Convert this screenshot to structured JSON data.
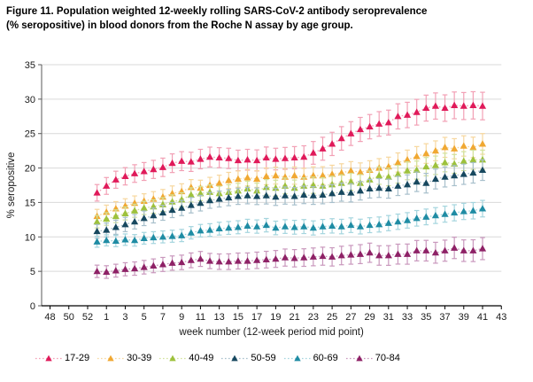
{
  "figure": {
    "title_line1": "Figure 11. Population weighted 12-weekly rolling SARS-CoV-2 antibody seroprevalence",
    "title_line2": "(% seropositive) in blood donors from the Roche N assay by age group."
  },
  "chart_data": {
    "type": "scatter",
    "title": "Figure 11. Population weighted 12-weekly rolling SARS-CoV-2 antibody seroprevalence (% seropositive) in blood donors from the Roche N assay by age group.",
    "xlabel": "week number (12-week period mid point)",
    "ylabel": "% seropositive",
    "ylim": [
      0,
      35
    ],
    "ytick_step": 5,
    "grid": "horizontal",
    "legend_position": "bottom",
    "marker": "triangle",
    "error_bars": true,
    "x_tick_labels": [
      "48",
      "50",
      "52",
      "1",
      "3",
      "5",
      "7",
      "9",
      "11",
      "13",
      "15",
      "17",
      "19",
      "21",
      "23",
      "25",
      "27",
      "29",
      "31",
      "33",
      "35",
      "37",
      "39",
      "41",
      "43"
    ],
    "weeks": [
      "53",
      "1",
      "2",
      "3",
      "4",
      "5",
      "6",
      "7",
      "8",
      "9",
      "10",
      "11",
      "12",
      "13",
      "14",
      "15",
      "16",
      "17",
      "18",
      "19",
      "20",
      "21",
      "22",
      "23",
      "24",
      "25",
      "26",
      "27",
      "28",
      "29",
      "30",
      "31",
      "32",
      "33",
      "34",
      "35",
      "36",
      "37",
      "38",
      "39",
      "40",
      "41"
    ],
    "series": [
      {
        "name": "17-29",
        "color": "#e01a5a",
        "tint": "#f2a0b5",
        "ci_start": 1.2,
        "ci_end": 2.0,
        "values": [
          16.4,
          17.4,
          18.3,
          18.8,
          19.2,
          19.5,
          19.8,
          20.1,
          20.7,
          21.0,
          20.9,
          21.3,
          21.6,
          21.5,
          21.4,
          21.1,
          21.2,
          21.1,
          21.5,
          21.3,
          21.4,
          21.5,
          21.6,
          22.2,
          22.8,
          23.5,
          24.3,
          25.0,
          25.6,
          26.0,
          26.4,
          26.6,
          27.5,
          27.7,
          28.1,
          28.7,
          29.0,
          28.7,
          29.1,
          29.0,
          29.1,
          29.0
        ]
      },
      {
        "name": "30-39",
        "color": "#f0a832",
        "tint": "#f7d79e",
        "ci_start": 1.0,
        "ci_end": 1.5,
        "values": [
          13.0,
          13.6,
          14.1,
          14.5,
          14.9,
          15.2,
          15.5,
          15.8,
          16.3,
          16.6,
          17.2,
          17.1,
          17.5,
          17.8,
          18.2,
          18.4,
          18.6,
          18.4,
          18.8,
          18.9,
          18.7,
          18.9,
          18.7,
          18.9,
          18.9,
          19.1,
          19.3,
          19.6,
          19.4,
          19.7,
          20.0,
          20.2,
          20.8,
          21.2,
          21.7,
          22.1,
          22.5,
          23.0,
          22.8,
          23.2,
          23.0,
          23.5
        ]
      },
      {
        "name": "40-49",
        "color": "#9dc13c",
        "tint": "#d2e29c",
        "ci_start": 0.9,
        "ci_end": 1.4,
        "values": [
          12.2,
          12.6,
          13.0,
          13.4,
          13.8,
          14.2,
          14.4,
          14.7,
          15.1,
          15.4,
          16.1,
          16.3,
          16.5,
          16.3,
          16.5,
          16.7,
          17.0,
          16.7,
          17.2,
          17.1,
          17.4,
          17.1,
          17.4,
          17.5,
          17.4,
          17.6,
          17.8,
          18.0,
          17.8,
          18.3,
          18.9,
          18.7,
          19.1,
          19.6,
          19.7,
          20.2,
          20.4,
          20.8,
          20.6,
          21.0,
          21.2,
          21.2
        ]
      },
      {
        "name": "50-59",
        "color": "#17485f",
        "tint": "#a7bfcb",
        "ci_start": 1.0,
        "ci_end": 1.5,
        "values": [
          10.8,
          11.0,
          11.4,
          11.8,
          12.2,
          12.7,
          13.1,
          13.5,
          13.9,
          14.2,
          14.6,
          14.9,
          15.3,
          15.5,
          15.7,
          15.9,
          16.0,
          15.9,
          16.0,
          15.8,
          16.0,
          15.9,
          16.1,
          16.0,
          16.1,
          16.3,
          16.5,
          16.4,
          16.7,
          17.0,
          17.1,
          17.0,
          17.4,
          17.6,
          18.0,
          17.8,
          18.4,
          18.7,
          18.9,
          19.1,
          19.3,
          19.7
        ]
      },
      {
        "name": "60-69",
        "color": "#1f8ca4",
        "tint": "#a5d5de",
        "ci_start": 0.8,
        "ci_end": 1.2,
        "values": [
          9.3,
          9.5,
          9.4,
          9.6,
          9.5,
          9.8,
          9.9,
          10.0,
          10.1,
          10.2,
          10.6,
          10.9,
          11.0,
          11.2,
          11.3,
          11.4,
          11.6,
          11.5,
          11.7,
          11.3,
          11.5,
          11.4,
          11.5,
          11.3,
          11.5,
          11.6,
          11.5,
          11.7,
          11.5,
          11.7,
          11.8,
          12.0,
          12.2,
          12.4,
          12.7,
          12.9,
          13.1,
          13.3,
          13.5,
          13.7,
          13.8,
          14.1
        ]
      },
      {
        "name": "70-84",
        "color": "#8e2166",
        "tint": "#c998bd",
        "ci_start": 0.9,
        "ci_end": 1.6,
        "values": [
          5.0,
          4.9,
          5.1,
          5.3,
          5.4,
          5.6,
          5.8,
          6.0,
          6.2,
          6.3,
          6.6,
          6.8,
          6.5,
          6.4,
          6.4,
          6.5,
          6.5,
          6.6,
          6.7,
          6.8,
          7.0,
          6.9,
          7.0,
          7.1,
          7.2,
          7.1,
          7.3,
          7.4,
          7.5,
          7.7,
          7.3,
          7.3,
          7.5,
          7.5,
          8.0,
          8.0,
          7.7,
          8.0,
          8.4,
          8.0,
          8.0,
          8.3
        ]
      }
    ]
  }
}
